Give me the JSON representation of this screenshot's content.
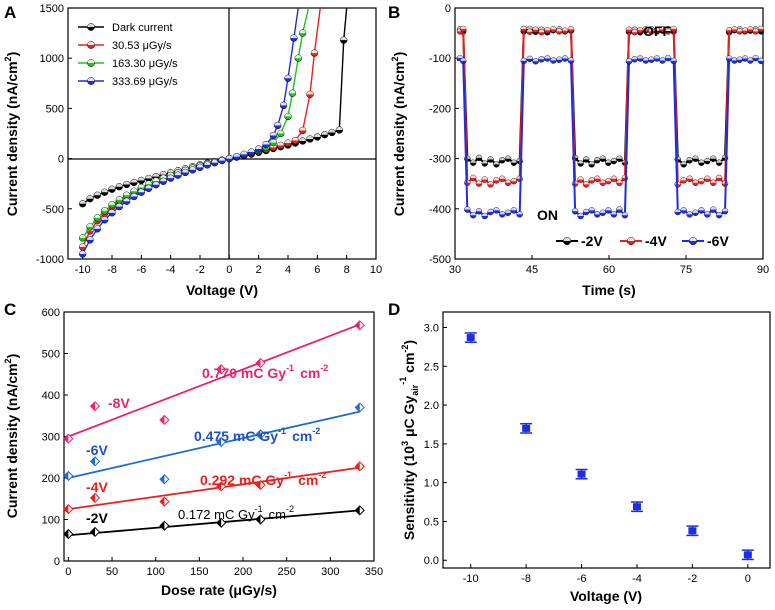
{
  "colors": {
    "dark": "#000000",
    "red": "#e8211e",
    "green": "#1ec31e",
    "blue": "#1d2ee0",
    "pink": "#e8236f",
    "midblue": "#1e6ccf",
    "errorbar": "#1d2ee0"
  },
  "chart_data": [
    {
      "panel": "A",
      "type": "line",
      "xlabel": "Voltage (V)",
      "ylabel": "Current density (nA/cm²)",
      "xlim": [
        -11,
        10
      ],
      "ylim": [
        -1000,
        1500
      ],
      "xticks": [
        -10,
        -8,
        -6,
        -4,
        -2,
        0,
        2,
        4,
        6,
        8,
        10
      ],
      "yticks": [
        -1000,
        -500,
        0,
        500,
        1000,
        1500
      ],
      "legend_position": "top-left",
      "series": [
        {
          "name": "Dark current",
          "color": "#000000",
          "x": [
            -10,
            -9.5,
            -9,
            -8.5,
            -8,
            -7.5,
            -7,
            -6.5,
            -6,
            -5.5,
            -5,
            -4.5,
            -4,
            -3.5,
            -3,
            -2.5,
            -2,
            -1.5,
            -1,
            -0.5,
            0,
            0.5,
            1,
            1.5,
            2,
            2.5,
            3,
            3.5,
            4,
            4.5,
            5,
            5.5,
            6,
            6.5,
            7,
            7.5,
            7.8,
            8.0
          ],
          "y": [
            -450,
            -400,
            -365,
            -335,
            -305,
            -280,
            -258,
            -238,
            -218,
            -198,
            -180,
            -160,
            -140,
            -120,
            -100,
            -80,
            -62,
            -45,
            -30,
            -15,
            0,
            15,
            30,
            45,
            62,
            80,
            100,
            118,
            135,
            155,
            175,
            195,
            215,
            238,
            260,
            285,
            1180,
            1500
          ]
        },
        {
          "name": "30.53  μGy/s",
          "color": "#e8211e",
          "x": [
            -10,
            -9.5,
            -9,
            -8.5,
            -8,
            -7.5,
            -7,
            -6.5,
            -6,
            -5.5,
            -5,
            -4.5,
            -4,
            -3.5,
            -3,
            -2.5,
            -2,
            -1.5,
            -1,
            -0.5,
            0,
            0.5,
            1,
            1.5,
            2,
            2.5,
            3,
            3.5,
            4,
            4.5,
            5,
            5.5,
            5.8,
            6.2
          ],
          "y": [
            -880,
            -720,
            -620,
            -545,
            -480,
            -425,
            -375,
            -335,
            -295,
            -260,
            -228,
            -198,
            -170,
            -142,
            -118,
            -95,
            -72,
            -52,
            -33,
            -16,
            0,
            16,
            33,
            52,
            72,
            92,
            112,
            132,
            155,
            180,
            280,
            640,
            1050,
            1500
          ]
        },
        {
          "name": "163.30  μGy/s",
          "color": "#1ec31e",
          "x": [
            -10,
            -9.5,
            -9,
            -8.5,
            -8,
            -7.5,
            -7,
            -6.5,
            -6,
            -5.5,
            -5,
            -4.5,
            -4,
            -3.5,
            -3,
            -2.5,
            -2,
            -1.5,
            -1,
            -0.5,
            0,
            0.5,
            1,
            1.5,
            2,
            2.5,
            3,
            3.5,
            4,
            4.3,
            4.7,
            5.0,
            5.4
          ],
          "y": [
            -790,
            -680,
            -590,
            -520,
            -460,
            -410,
            -365,
            -325,
            -288,
            -255,
            -223,
            -195,
            -168,
            -142,
            -118,
            -95,
            -72,
            -52,
            -33,
            -16,
            0,
            17,
            36,
            58,
            82,
            110,
            160,
            250,
            420,
            650,
            1000,
            1250,
            1500
          ]
        },
        {
          "name": "333.69  μGy/s",
          "color": "#1d2ee0",
          "x": [
            -10,
            -9.5,
            -9,
            -8.5,
            -8,
            -7.5,
            -7,
            -6.5,
            -6,
            -5.5,
            -5,
            -4.5,
            -4,
            -3.5,
            -3,
            -2.5,
            -2,
            -1.5,
            -1,
            -0.5,
            0,
            0.5,
            1,
            1.5,
            2,
            2.5,
            3,
            3.3,
            3.7,
            4.0,
            4.4,
            4.7
          ],
          "y": [
            -950,
            -810,
            -700,
            -610,
            -540,
            -478,
            -425,
            -378,
            -335,
            -296,
            -260,
            -226,
            -195,
            -165,
            -138,
            -112,
            -87,
            -63,
            -41,
            -20,
            0,
            20,
            42,
            66,
            95,
            140,
            230,
            330,
            530,
            800,
            1200,
            1500
          ]
        }
      ]
    },
    {
      "panel": "B",
      "type": "line",
      "xlabel": "Time (s)",
      "ylabel": "Current density (nA/cm²)",
      "xlim": [
        30,
        90
      ],
      "ylim": [
        -500,
        0
      ],
      "xticks": [
        30,
        45,
        60,
        75,
        90
      ],
      "yticks": [
        -500,
        -400,
        -300,
        -200,
        -100,
        0
      ],
      "annotations": [
        "OFF",
        "ON"
      ],
      "legend_position": "bottom-right",
      "on_off_edges_s": [
        32,
        43,
        53,
        63.5,
        73,
        83
      ],
      "series": [
        {
          "name": "-2V",
          "color": "#000000",
          "off_level": -45,
          "on_level": -305
        },
        {
          "name": "-4V",
          "color": "#e8211e",
          "off_level": -45,
          "on_level": -345
        },
        {
          "name": "-6V",
          "color": "#1d2ee0",
          "off_level": -103,
          "on_level": -408
        }
      ]
    },
    {
      "panel": "C",
      "type": "scatter",
      "xlabel": "Dose rate (μGy/s)",
      "ylabel": "Current density (nA/cm²)",
      "xlim": [
        -5,
        350
      ],
      "ylim": [
        0,
        600
      ],
      "xticks": [
        0,
        50,
        100,
        150,
        200,
        250,
        300,
        350
      ],
      "yticks": [
        0,
        100,
        200,
        300,
        400,
        500,
        600
      ],
      "series": [
        {
          "name": "-2V",
          "color": "#000000",
          "fit_label": "0.172 mC Gy⁻¹ cm⁻²",
          "x": [
            0,
            30.53,
            110,
            175,
            220,
            333.69
          ],
          "y": [
            65,
            70,
            85,
            92,
            100,
            122
          ],
          "fit": [
            62,
            122
          ]
        },
        {
          "name": "-4V",
          "color": "#e8211e",
          "fit_label": "0.292 mC Gy⁻¹ cm⁻²",
          "x": [
            0,
            30.53,
            110,
            175,
            220,
            333.69
          ],
          "y": [
            125,
            152,
            143,
            180,
            183,
            228
          ],
          "fit": [
            125,
            225
          ]
        },
        {
          "name": "-6V",
          "color": "#1e6ccf",
          "fit_label": "0.475 mC Gy⁻¹ cm⁻²",
          "x": [
            0,
            30.53,
            110,
            175,
            220,
            333.69
          ],
          "y": [
            205,
            240,
            197,
            287,
            305,
            370
          ],
          "fit": [
            200,
            360
          ]
        },
        {
          "name": "-8V",
          "color": "#e8236f",
          "fit_label": "0.770 mC Gy⁻¹ cm⁻²",
          "x": [
            0,
            30.53,
            110,
            175,
            220,
            333.69
          ],
          "y": [
            295,
            373,
            340,
            462,
            477,
            568
          ],
          "fit": [
            300,
            570
          ]
        }
      ]
    },
    {
      "panel": "D",
      "type": "scatter",
      "xlabel": "Voltage (V)",
      "ylabel": "Sensitivity (10³ μC Gy_air⁻¹ cm⁻²)",
      "xlim": [
        -11,
        0.8
      ],
      "ylim": [
        -0.1,
        3.2
      ],
      "xticks": [
        -10,
        -8,
        -6,
        -4,
        -2,
        0
      ],
      "yticks": [
        0.0,
        0.5,
        1.0,
        1.5,
        2.0,
        2.5,
        3.0
      ],
      "series": [
        {
          "name": "Sensitivity",
          "color": "#1d2ee0",
          "x": [
            -10,
            -8,
            -6,
            -4,
            -2,
            0
          ],
          "y": [
            2.87,
            1.7,
            1.11,
            0.69,
            0.38,
            0.07
          ],
          "err": [
            0.06,
            0.06,
            0.06,
            0.06,
            0.06,
            0.06
          ]
        }
      ]
    }
  ],
  "labels": {
    "panel_a": "A",
    "panel_b": "B",
    "panel_c": "C",
    "panel_d": "D",
    "off": "OFF",
    "on": "ON",
    "c_fit_2v": "0.172 mC Gy",
    "c_fit_4v": "0.292 mC Gy",
    "c_fit_6v": "0.475 mC Gy",
    "c_fit_8v": "0.770 mC Gy",
    "c_tag_2v": "-2V",
    "c_tag_4v": "-4V",
    "c_tag_6v": "-6V",
    "c_tag_8v": "-8V",
    "sup_m1": "-1",
    "sup_m2": "-2",
    "cm": "cm",
    "d_ylabel_main": "Sensitivity (10",
    "d_ylabel_3": "3",
    "d_ylabel_mid": " μC Gy",
    "d_ylabel_sub": "air",
    "d_ylabel_end": " cm",
    "d_ylabel_close": ")",
    "ylabel_main": "Current density (nA/cm",
    "ylabel_sup": "2",
    "ylabel_close": ")"
  }
}
